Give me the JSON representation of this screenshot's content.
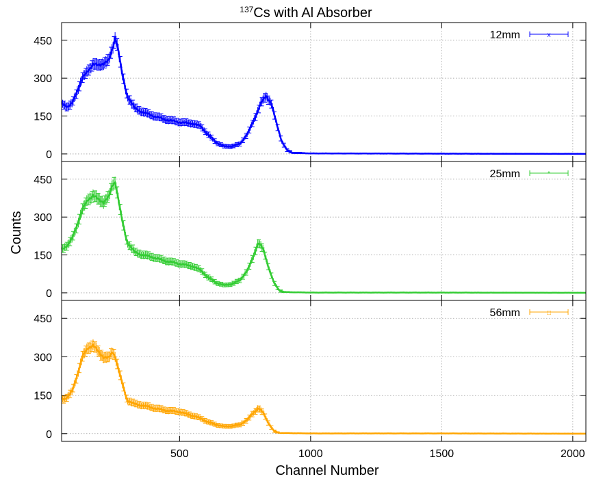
{
  "chart_data": {
    "type": "line",
    "title_prefix": "137",
    "title_main": "Cs with Al Absorber",
    "xlabel": "Channel Number",
    "ylabel": "Counts",
    "xlim": [
      50,
      2050
    ],
    "ylim": [
      -30,
      520
    ],
    "x_ticks": [
      500,
      1000,
      1500,
      2000
    ],
    "y_ticks": [
      0,
      150,
      300,
      450
    ],
    "grid": true,
    "legend_position": "top-right",
    "error_bars": true,
    "panels": [
      {
        "series_name": "12mm",
        "color": "#0000ff",
        "marker": "x",
        "x": [
          50,
          60,
          75,
          90,
          110,
          130,
          150,
          170,
          190,
          210,
          230,
          245,
          255,
          265,
          280,
          300,
          330,
          360,
          400,
          450,
          500,
          550,
          580,
          610,
          640,
          670,
          700,
          730,
          760,
          790,
          810,
          830,
          850,
          870,
          890,
          910,
          930,
          1000,
          1500,
          2050
        ],
        "y": [
          205,
          195,
          185,
          200,
          250,
          300,
          330,
          355,
          350,
          360,
          370,
          420,
          465,
          420,
          320,
          230,
          180,
          165,
          150,
          135,
          125,
          120,
          110,
          75,
          45,
          30,
          30,
          40,
          80,
          150,
          200,
          230,
          200,
          120,
          50,
          15,
          5,
          2,
          1,
          0
        ]
      },
      {
        "series_name": "25mm",
        "color": "#33cc33",
        "marker": "*",
        "x": [
          50,
          60,
          75,
          90,
          110,
          130,
          150,
          170,
          190,
          210,
          230,
          245,
          255,
          265,
          280,
          300,
          330,
          360,
          400,
          450,
          500,
          550,
          580,
          610,
          640,
          670,
          700,
          730,
          760,
          780,
          800,
          820,
          840,
          860,
          880,
          900,
          1000,
          1500,
          2050
        ],
        "y": [
          175,
          180,
          190,
          215,
          270,
          330,
          370,
          385,
          370,
          360,
          380,
          430,
          440,
          380,
          290,
          200,
          160,
          150,
          140,
          125,
          115,
          105,
          90,
          60,
          40,
          30,
          35,
          50,
          90,
          140,
          200,
          170,
          100,
          40,
          10,
          3,
          1,
          1,
          0
        ]
      },
      {
        "series_name": "56mm",
        "color": "#ffa500",
        "marker": "□",
        "x": [
          50,
          60,
          75,
          90,
          110,
          130,
          150,
          170,
          190,
          210,
          230,
          245,
          255,
          265,
          280,
          300,
          330,
          360,
          400,
          450,
          500,
          550,
          580,
          610,
          640,
          670,
          700,
          730,
          760,
          780,
          800,
          820,
          840,
          860,
          880,
          1000,
          1500,
          2050
        ],
        "y": [
          140,
          135,
          145,
          165,
          230,
          300,
          335,
          345,
          320,
          300,
          295,
          320,
          300,
          260,
          200,
          130,
          115,
          110,
          100,
          90,
          85,
          70,
          60,
          45,
          35,
          28,
          30,
          35,
          55,
          80,
          100,
          80,
          40,
          10,
          3,
          1,
          1,
          0
        ]
      }
    ]
  }
}
